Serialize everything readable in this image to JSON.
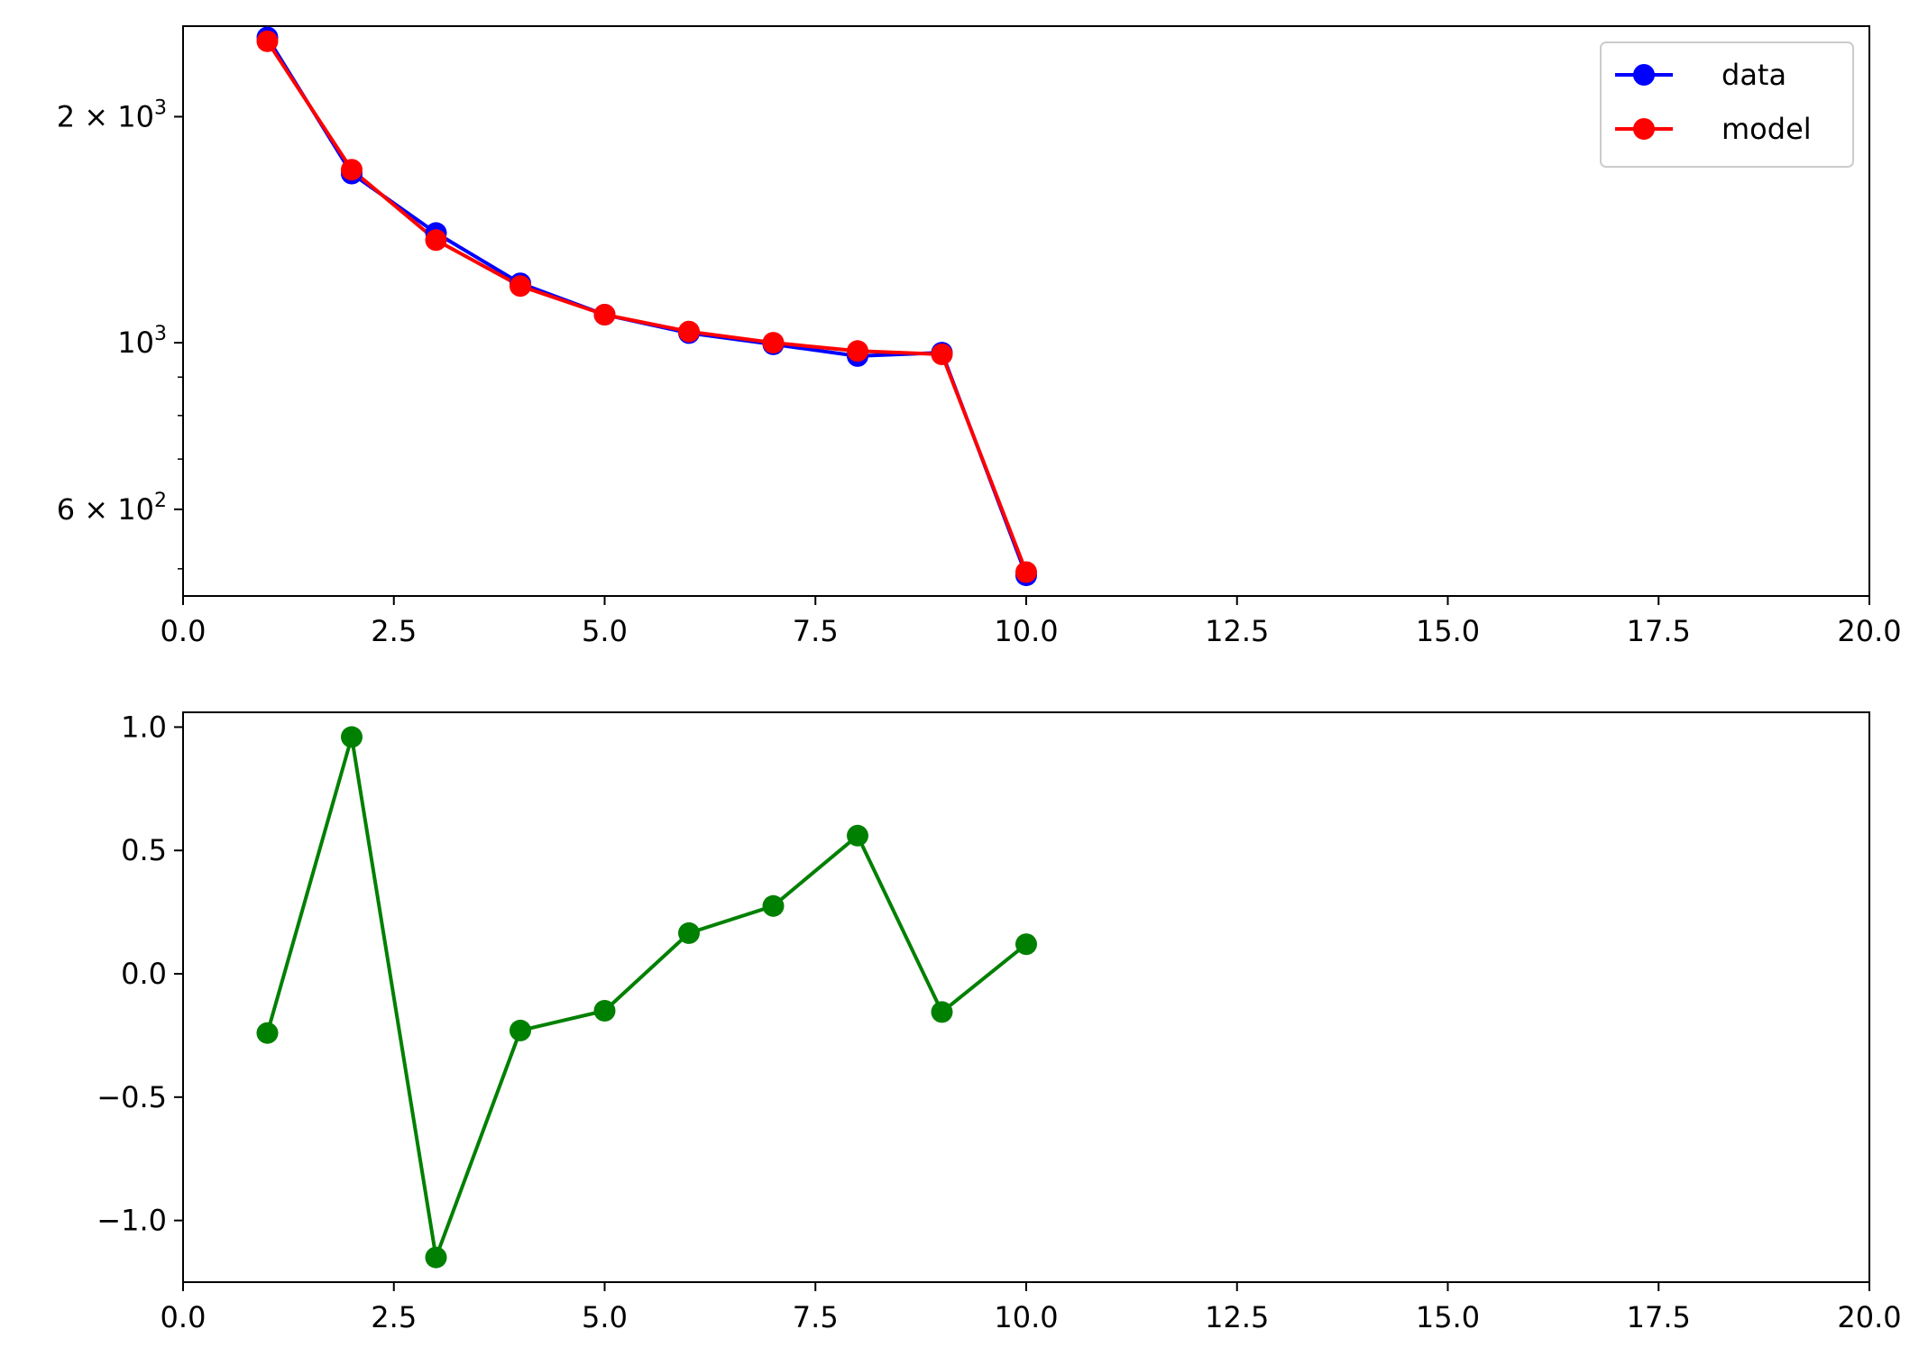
{
  "chart_data": [
    {
      "type": "line",
      "title": "",
      "xlabel": "",
      "ylabel": "",
      "yscale": "log",
      "xlim": [
        0,
        20
      ],
      "ylim": [
        460,
        2640
      ],
      "grid": false,
      "legend_position": "top-right",
      "x": [
        1,
        2,
        3,
        4,
        5,
        6,
        7,
        8,
        9,
        10
      ],
      "series": [
        {
          "name": "data",
          "color": "#0000ff",
          "marker": "circle",
          "values": [
            2550,
            1680,
            1400,
            1200,
            1090,
            1030,
            995,
            960,
            970,
            490
          ]
        },
        {
          "name": "model",
          "color": "#ff0000",
          "marker": "circle",
          "values": [
            2520,
            1700,
            1370,
            1190,
            1090,
            1035,
            1000,
            975,
            965,
            495
          ]
        }
      ],
      "x_ticks": [
        {
          "value": 0,
          "label": "0.0"
        },
        {
          "value": 2.5,
          "label": "2.5"
        },
        {
          "value": 5,
          "label": "5.0"
        },
        {
          "value": 7.5,
          "label": "7.5"
        },
        {
          "value": 10,
          "label": "10.0"
        },
        {
          "value": 12.5,
          "label": "12.5"
        },
        {
          "value": 15,
          "label": "15.0"
        },
        {
          "value": 17.5,
          "label": "17.5"
        },
        {
          "value": 20,
          "label": "20.0"
        }
      ],
      "y_ticks": [
        {
          "value": 2000,
          "base": "2 × 10",
          "exp": "3"
        },
        {
          "value": 1000,
          "base": "10",
          "exp": "3"
        },
        {
          "value": 600,
          "base": "6 × 10",
          "exp": "2"
        }
      ],
      "y_minor_ticks": [
        500,
        700,
        800,
        900
      ]
    },
    {
      "type": "line",
      "title": "",
      "xlabel": "",
      "ylabel": "",
      "yscale": "linear",
      "xlim": [
        0,
        20
      ],
      "ylim": [
        -1.25,
        1.06
      ],
      "grid": false,
      "x": [
        1,
        2,
        3,
        4,
        5,
        6,
        7,
        8,
        9,
        10
      ],
      "series": [
        {
          "color": "#008000",
          "marker": "circle",
          "values": [
            -0.24,
            0.96,
            -1.15,
            -0.23,
            -0.15,
            0.165,
            0.275,
            0.56,
            -0.155,
            0.12
          ]
        }
      ],
      "x_ticks": [
        {
          "value": 0,
          "label": "0.0"
        },
        {
          "value": 2.5,
          "label": "2.5"
        },
        {
          "value": 5,
          "label": "5.0"
        },
        {
          "value": 7.5,
          "label": "7.5"
        },
        {
          "value": 10,
          "label": "10.0"
        },
        {
          "value": 12.5,
          "label": "12.5"
        },
        {
          "value": 15,
          "label": "15.0"
        },
        {
          "value": 17.5,
          "label": "17.5"
        },
        {
          "value": 20,
          "label": "20.0"
        }
      ],
      "y_ticks": [
        {
          "value": 1.0,
          "label": "1.0"
        },
        {
          "value": 0.5,
          "label": "0.5"
        },
        {
          "value": 0.0,
          "label": "0.0"
        },
        {
          "value": -0.5,
          "label": "−0.5"
        },
        {
          "value": -1.0,
          "label": "−1.0"
        }
      ]
    }
  ]
}
